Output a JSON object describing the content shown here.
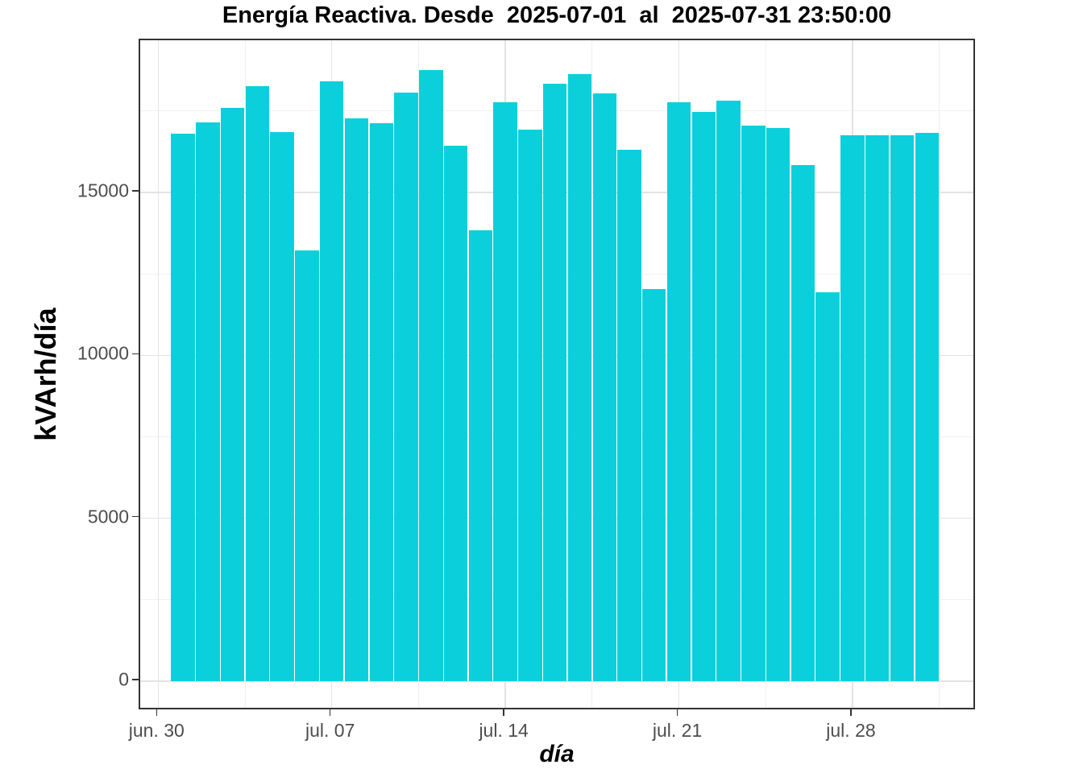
{
  "chart_data": {
    "type": "bar",
    "title": "Energía Reactiva. Desde  2025-07-01  al  2025-07-31 23:50:00",
    "xlabel": "día",
    "ylabel": "kVArh/día",
    "x": [
      "2025-07-01",
      "2025-07-02",
      "2025-07-03",
      "2025-07-04",
      "2025-07-05",
      "2025-07-06",
      "2025-07-07",
      "2025-07-08",
      "2025-07-09",
      "2025-07-10",
      "2025-07-11",
      "2025-07-12",
      "2025-07-13",
      "2025-07-14",
      "2025-07-15",
      "2025-07-16",
      "2025-07-17",
      "2025-07-18",
      "2025-07-19",
      "2025-07-20",
      "2025-07-21",
      "2025-07-22",
      "2025-07-23",
      "2025-07-24",
      "2025-07-25",
      "2025-07-26",
      "2025-07-27",
      "2025-07-28",
      "2025-07-29",
      "2025-07-30",
      "2025-07-31"
    ],
    "values": [
      16800,
      17150,
      17590,
      18260,
      16850,
      13210,
      18410,
      17270,
      17130,
      18070,
      18760,
      16430,
      13840,
      17780,
      16930,
      18340,
      18630,
      18050,
      16320,
      12040,
      17770,
      17460,
      17810,
      17050,
      16980,
      15830,
      11930,
      16750,
      16750,
      16750,
      16840
    ],
    "bar_color": "#0bd0db",
    "ylim": [
      0,
      19670
    ],
    "yticks": [
      {
        "value": 0,
        "label": "0"
      },
      {
        "value": 5000,
        "label": "5000"
      },
      {
        "value": 10000,
        "label": "10000"
      },
      {
        "value": 15000,
        "label": "15000"
      }
    ],
    "y_minor": [
      2500,
      7500,
      12500,
      17500
    ],
    "xticks": [
      {
        "day": 0,
        "label": "jun. 30"
      },
      {
        "day": 7,
        "label": "jul. 07"
      },
      {
        "day": 14,
        "label": "jul. 14"
      },
      {
        "day": 21,
        "label": "jul. 21"
      },
      {
        "day": 28,
        "label": "jul. 28"
      }
    ],
    "x_minor_days": [
      3.5,
      10.5,
      17.5,
      24.5,
      31.5
    ],
    "grid": "on",
    "legend": "none",
    "colors": {
      "grid_major": "#e3e3e3",
      "grid_minor": "#f0f0f0",
      "panel_border": "#333333",
      "tick_label": "#4d4d4d",
      "tick_mark": "#333333",
      "axis_title": "#000000",
      "background": "#ffffff"
    }
  }
}
